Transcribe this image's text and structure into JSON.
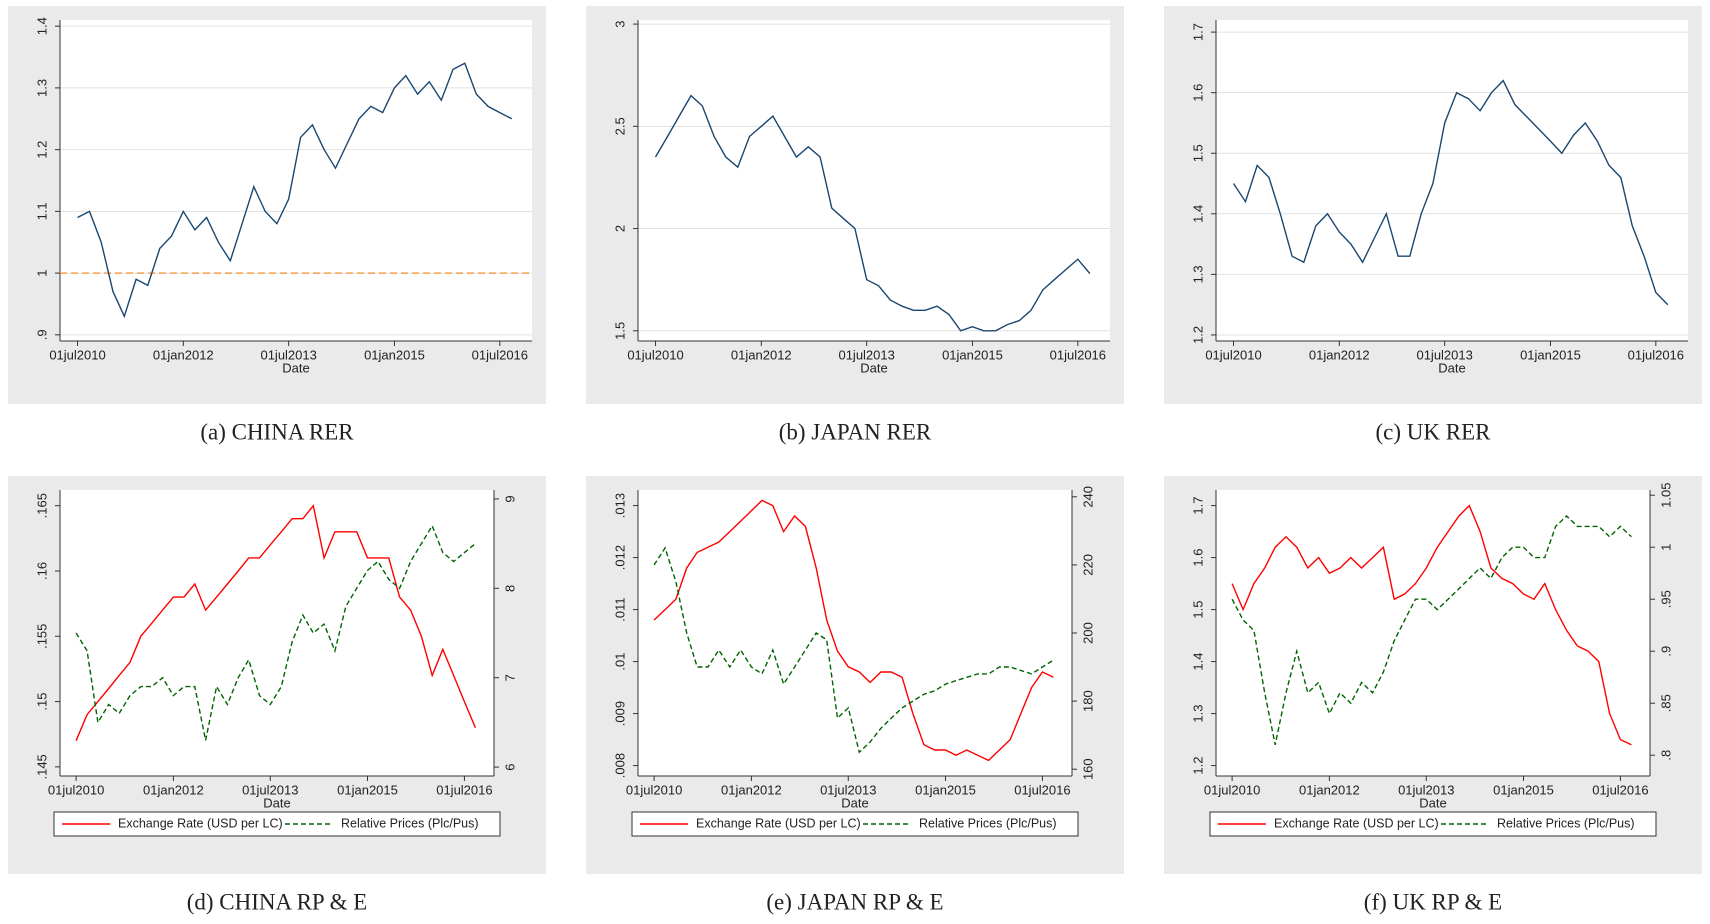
{
  "chart_data": [
    {
      "type": "line",
      "caption": "(a) CHINA RER",
      "x_label": "Date",
      "x": [
        "2010-07-01",
        "2010-09-01",
        "2010-11-01",
        "2011-01-01",
        "2011-03-01",
        "2011-05-01",
        "2011-07-01",
        "2011-09-01",
        "2011-11-01",
        "2012-01-01",
        "2012-03-01",
        "2012-05-01",
        "2012-07-01",
        "2012-09-01",
        "2012-11-01",
        "2013-01-01",
        "2013-03-01",
        "2013-05-01",
        "2013-07-01",
        "2013-09-01",
        "2013-11-01",
        "2014-01-01",
        "2014-03-01",
        "2014-05-01",
        "2014-07-01",
        "2014-09-01",
        "2014-11-01",
        "2015-01-01",
        "2015-03-01",
        "2015-05-01",
        "2015-07-01",
        "2015-09-01",
        "2015-11-01",
        "2016-01-01",
        "2016-03-01",
        "2016-05-01",
        "2016-07-01",
        "2016-09-01"
      ],
      "xlim": [
        "2010-04-01",
        "2016-12-15"
      ],
      "xticks": [
        {
          "value": "2010-07-01",
          "label": "01jul2010"
        },
        {
          "value": "2012-01-01",
          "label": "01jan2012"
        },
        {
          "value": "2013-07-01",
          "label": "01jul2013"
        },
        {
          "value": "2015-01-01",
          "label": "01jan2015"
        },
        {
          "value": "2016-07-01",
          "label": "01jul2016"
        }
      ],
      "ylim": [
        0.89,
        1.41
      ],
      "yticks": [
        {
          "value": 0.9,
          "label": ".9"
        },
        1,
        1.1,
        1.2,
        1.3,
        1.4
      ],
      "refline": 1,
      "refline_color": "#f5a04a",
      "grid": true,
      "series": [
        {
          "color": "#1a476f",
          "values": [
            1.09,
            1.1,
            1.05,
            0.97,
            0.93,
            0.99,
            0.98,
            1.04,
            1.06,
            1.1,
            1.07,
            1.09,
            1.05,
            1.02,
            1.08,
            1.14,
            1.1,
            1.08,
            1.12,
            1.22,
            1.24,
            1.2,
            1.17,
            1.21,
            1.25,
            1.27,
            1.26,
            1.3,
            1.32,
            1.29,
            1.31,
            1.28,
            1.33,
            1.34,
            1.29,
            1.27,
            1.26,
            1.25
          ]
        }
      ]
    },
    {
      "type": "line",
      "caption": "(b) JAPAN RER",
      "x_label": "Date",
      "x": [
        "2010-07-01",
        "2010-09-01",
        "2010-11-01",
        "2011-01-01",
        "2011-03-01",
        "2011-05-01",
        "2011-07-01",
        "2011-09-01",
        "2011-11-01",
        "2012-01-01",
        "2012-03-01",
        "2012-05-01",
        "2012-07-01",
        "2012-09-01",
        "2012-11-01",
        "2013-01-01",
        "2013-03-01",
        "2013-05-01",
        "2013-07-01",
        "2013-09-01",
        "2013-11-01",
        "2014-01-01",
        "2014-03-01",
        "2014-05-01",
        "2014-07-01",
        "2014-09-01",
        "2014-11-01",
        "2015-01-01",
        "2015-03-01",
        "2015-05-01",
        "2015-07-01",
        "2015-09-01",
        "2015-11-01",
        "2016-01-01",
        "2016-03-01",
        "2016-05-01",
        "2016-07-01",
        "2016-09-01"
      ],
      "xlim": [
        "2010-04-01",
        "2016-12-15"
      ],
      "xticks": [
        {
          "value": "2010-07-01",
          "label": "01jul2010"
        },
        {
          "value": "2012-01-01",
          "label": "01jan2012"
        },
        {
          "value": "2013-07-01",
          "label": "01jul2013"
        },
        {
          "value": "2015-01-01",
          "label": "01jan2015"
        },
        {
          "value": "2016-07-01",
          "label": "01jul2016"
        }
      ],
      "ylim": [
        1.45,
        3.02
      ],
      "yticks": [
        1.5,
        2,
        2.5,
        3
      ],
      "grid": true,
      "series": [
        {
          "color": "#1a476f",
          "values": [
            2.35,
            2.45,
            2.55,
            2.65,
            2.6,
            2.45,
            2.35,
            2.3,
            2.45,
            2.5,
            2.55,
            2.45,
            2.35,
            2.4,
            2.35,
            2.1,
            2.05,
            2.0,
            1.75,
            1.72,
            1.65,
            1.62,
            1.6,
            1.6,
            1.62,
            1.58,
            1.5,
            1.52,
            1.5,
            1.5,
            1.53,
            1.55,
            1.6,
            1.7,
            1.75,
            1.8,
            1.85,
            1.78
          ]
        }
      ]
    },
    {
      "type": "line",
      "caption": "(c) UK RER",
      "x_label": "Date",
      "x": [
        "2010-07-01",
        "2010-09-01",
        "2010-11-01",
        "2011-01-01",
        "2011-03-01",
        "2011-05-01",
        "2011-07-01",
        "2011-09-01",
        "2011-11-01",
        "2012-01-01",
        "2012-03-01",
        "2012-05-01",
        "2012-07-01",
        "2012-09-01",
        "2012-11-01",
        "2013-01-01",
        "2013-03-01",
        "2013-05-01",
        "2013-07-01",
        "2013-09-01",
        "2013-11-01",
        "2014-01-01",
        "2014-03-01",
        "2014-05-01",
        "2014-07-01",
        "2014-09-01",
        "2014-11-01",
        "2015-01-01",
        "2015-03-01",
        "2015-05-01",
        "2015-07-01",
        "2015-09-01",
        "2015-11-01",
        "2016-01-01",
        "2016-03-01",
        "2016-05-01",
        "2016-07-01",
        "2016-09-01"
      ],
      "xlim": [
        "2010-04-01",
        "2016-12-15"
      ],
      "xticks": [
        {
          "value": "2010-07-01",
          "label": "01jul2010"
        },
        {
          "value": "2012-01-01",
          "label": "01jan2012"
        },
        {
          "value": "2013-07-01",
          "label": "01jul2013"
        },
        {
          "value": "2015-01-01",
          "label": "01jan2015"
        },
        {
          "value": "2016-07-01",
          "label": "01jul2016"
        }
      ],
      "ylim": [
        1.19,
        1.72
      ],
      "yticks": [
        1.2,
        1.3,
        1.4,
        1.5,
        1.6,
        1.7
      ],
      "grid": true,
      "series": [
        {
          "color": "#1a476f",
          "values": [
            1.45,
            1.42,
            1.48,
            1.46,
            1.4,
            1.33,
            1.32,
            1.38,
            1.4,
            1.37,
            1.35,
            1.32,
            1.36,
            1.4,
            1.33,
            1.33,
            1.4,
            1.45,
            1.55,
            1.6,
            1.59,
            1.57,
            1.6,
            1.62,
            1.58,
            1.56,
            1.54,
            1.52,
            1.5,
            1.53,
            1.55,
            1.52,
            1.48,
            1.46,
            1.38,
            1.33,
            1.27,
            1.25
          ]
        }
      ]
    },
    {
      "type": "line",
      "caption": "(d) CHINA RP & E",
      "x_label": "Date",
      "legend": "bottom",
      "x": [
        "2010-07-01",
        "2010-09-01",
        "2010-11-01",
        "2011-01-01",
        "2011-03-01",
        "2011-05-01",
        "2011-07-01",
        "2011-09-01",
        "2011-11-01",
        "2012-01-01",
        "2012-03-01",
        "2012-05-01",
        "2012-07-01",
        "2012-09-01",
        "2012-11-01",
        "2013-01-01",
        "2013-03-01",
        "2013-05-01",
        "2013-07-01",
        "2013-09-01",
        "2013-11-01",
        "2014-01-01",
        "2014-03-01",
        "2014-05-01",
        "2014-07-01",
        "2014-09-01",
        "2014-11-01",
        "2015-01-01",
        "2015-03-01",
        "2015-05-01",
        "2015-07-01",
        "2015-09-01",
        "2015-11-01",
        "2016-01-01",
        "2016-03-01",
        "2016-05-01",
        "2016-07-01",
        "2016-09-01"
      ],
      "xlim": [
        "2010-04-01",
        "2016-12-15"
      ],
      "xticks": [
        {
          "value": "2010-07-01",
          "label": "01jul2010"
        },
        {
          "value": "2012-01-01",
          "label": "01jan2012"
        },
        {
          "value": "2013-07-01",
          "label": "01jul2013"
        },
        {
          "value": "2015-01-01",
          "label": "01jan2015"
        },
        {
          "value": "2016-07-01",
          "label": "01jul2016"
        }
      ],
      "ylim": [
        0.1443,
        0.1662
      ],
      "yticks": [
        {
          "value": 0.145,
          "label": ".145"
        },
        {
          "value": 0.15,
          "label": ".15"
        },
        {
          "value": 0.155,
          "label": ".155"
        },
        {
          "value": 0.16,
          "label": ".16"
        },
        {
          "value": 0.165,
          "label": ".165"
        }
      ],
      "y2lim": [
        5.9,
        9.1
      ],
      "y2ticks": [
        6,
        7,
        8,
        9
      ],
      "grid": false,
      "series": [
        {
          "name": "Exchange Rate (USD per LC)",
          "color": "#ff0000",
          "values": [
            0.147,
            0.149,
            0.15,
            0.151,
            0.152,
            0.153,
            0.155,
            0.156,
            0.157,
            0.158,
            0.158,
            0.159,
            0.157,
            0.158,
            0.159,
            0.16,
            0.161,
            0.161,
            0.162,
            0.163,
            0.164,
            0.164,
            0.165,
            0.161,
            0.163,
            0.163,
            0.163,
            0.161,
            0.161,
            0.161,
            0.158,
            0.157,
            0.155,
            0.152,
            0.154,
            0.152,
            0.15,
            0.148
          ]
        },
        {
          "name": "Relative Prices (Plc/Pus)",
          "color": "#006400",
          "dash": true,
          "axis": "y2",
          "values": [
            7.5,
            7.3,
            6.5,
            6.7,
            6.6,
            6.8,
            6.9,
            6.9,
            7.0,
            6.8,
            6.9,
            6.9,
            6.3,
            6.9,
            6.7,
            7.0,
            7.2,
            6.8,
            6.7,
            6.9,
            7.4,
            7.7,
            7.5,
            7.6,
            7.3,
            7.8,
            8.0,
            8.2,
            8.3,
            8.1,
            8.0,
            8.3,
            8.5,
            8.7,
            8.4,
            8.3,
            8.4,
            8.5
          ]
        }
      ]
    },
    {
      "type": "line",
      "caption": "(e) JAPAN RP & E",
      "x_label": "Date",
      "legend": "bottom",
      "x": [
        "2010-07-01",
        "2010-09-01",
        "2010-11-01",
        "2011-01-01",
        "2011-03-01",
        "2011-05-01",
        "2011-07-01",
        "2011-09-01",
        "2011-11-01",
        "2012-01-01",
        "2012-03-01",
        "2012-05-01",
        "2012-07-01",
        "2012-09-01",
        "2012-11-01",
        "2013-01-01",
        "2013-03-01",
        "2013-05-01",
        "2013-07-01",
        "2013-09-01",
        "2013-11-01",
        "2014-01-01",
        "2014-03-01",
        "2014-05-01",
        "2014-07-01",
        "2014-09-01",
        "2014-11-01",
        "2015-01-01",
        "2015-03-01",
        "2015-05-01",
        "2015-07-01",
        "2015-09-01",
        "2015-11-01",
        "2016-01-01",
        "2016-03-01",
        "2016-05-01",
        "2016-07-01",
        "2016-09-01"
      ],
      "xlim": [
        "2010-04-01",
        "2016-12-15"
      ],
      "xticks": [
        {
          "value": "2010-07-01",
          "label": "01jul2010"
        },
        {
          "value": "2012-01-01",
          "label": "01jan2012"
        },
        {
          "value": "2013-07-01",
          "label": "01jul2013"
        },
        {
          "value": "2015-01-01",
          "label": "01jan2015"
        },
        {
          "value": "2016-07-01",
          "label": "01jul2016"
        }
      ],
      "ylim": [
        0.0078,
        0.0133
      ],
      "yticks": [
        {
          "value": 0.008,
          "label": ".008"
        },
        {
          "value": 0.009,
          "label": ".009"
        },
        {
          "value": 0.01,
          "label": ".01"
        },
        {
          "value": 0.011,
          "label": ".011"
        },
        {
          "value": 0.012,
          "label": ".012"
        },
        {
          "value": 0.013,
          "label": ".013"
        }
      ],
      "y2lim": [
        158,
        242
      ],
      "y2ticks": [
        160,
        180,
        200,
        220,
        240
      ],
      "grid": false,
      "series": [
        {
          "name": "Exchange Rate (USD per LC)",
          "color": "#ff0000",
          "values": [
            0.0108,
            0.011,
            0.0112,
            0.0118,
            0.0121,
            0.0122,
            0.0123,
            0.0125,
            0.0127,
            0.0129,
            0.0131,
            0.013,
            0.0125,
            0.0128,
            0.0126,
            0.0118,
            0.0108,
            0.0102,
            0.0099,
            0.0098,
            0.0096,
            0.0098,
            0.0098,
            0.0097,
            0.009,
            0.0084,
            0.0083,
            0.0083,
            0.0082,
            0.0083,
            0.0082,
            0.0081,
            0.0083,
            0.0085,
            0.009,
            0.0095,
            0.0098,
            0.0097
          ]
        },
        {
          "name": "Relative Prices (Plc/Pus)",
          "color": "#006400",
          "dash": true,
          "axis": "y2",
          "values": [
            220,
            225,
            215,
            200,
            190,
            190,
            195,
            190,
            195,
            190,
            188,
            195,
            185,
            190,
            195,
            200,
            198,
            175,
            178,
            165,
            168,
            172,
            175,
            178,
            180,
            182,
            183,
            185,
            186,
            187,
            188,
            188,
            190,
            190,
            189,
            188,
            190,
            192
          ]
        }
      ]
    },
    {
      "type": "line",
      "caption": "(f) UK RP & E",
      "x_label": "Date",
      "legend": "bottom",
      "x": [
        "2010-07-01",
        "2010-09-01",
        "2010-11-01",
        "2011-01-01",
        "2011-03-01",
        "2011-05-01",
        "2011-07-01",
        "2011-09-01",
        "2011-11-01",
        "2012-01-01",
        "2012-03-01",
        "2012-05-01",
        "2012-07-01",
        "2012-09-01",
        "2012-11-01",
        "2013-01-01",
        "2013-03-01",
        "2013-05-01",
        "2013-07-01",
        "2013-09-01",
        "2013-11-01",
        "2014-01-01",
        "2014-03-01",
        "2014-05-01",
        "2014-07-01",
        "2014-09-01",
        "2014-11-01",
        "2015-01-01",
        "2015-03-01",
        "2015-05-01",
        "2015-07-01",
        "2015-09-01",
        "2015-11-01",
        "2016-01-01",
        "2016-03-01",
        "2016-05-01",
        "2016-07-01",
        "2016-09-01"
      ],
      "xlim": [
        "2010-04-01",
        "2016-12-15"
      ],
      "xticks": [
        {
          "value": "2010-07-01",
          "label": "01jul2010"
        },
        {
          "value": "2012-01-01",
          "label": "01jan2012"
        },
        {
          "value": "2013-07-01",
          "label": "01jul2013"
        },
        {
          "value": "2015-01-01",
          "label": "01jan2015"
        },
        {
          "value": "2016-07-01",
          "label": "01jul2016"
        }
      ],
      "ylim": [
        1.18,
        1.73
      ],
      "yticks": [
        1.2,
        1.3,
        1.4,
        1.5,
        1.6,
        1.7
      ],
      "y2lim": [
        0.78,
        1.055
      ],
      "y2ticks": [
        {
          "value": 0.8,
          "label": ".8"
        },
        {
          "value": 0.85,
          "label": ".85"
        },
        {
          "value": 0.9,
          "label": ".9"
        },
        {
          "value": 0.95,
          "label": ".95"
        },
        1,
        1.05
      ],
      "grid": false,
      "series": [
        {
          "name": "Exchange Rate (USD per LC)",
          "color": "#ff0000",
          "values": [
            1.55,
            1.5,
            1.55,
            1.58,
            1.62,
            1.64,
            1.62,
            1.58,
            1.6,
            1.57,
            1.58,
            1.6,
            1.58,
            1.6,
            1.62,
            1.52,
            1.53,
            1.55,
            1.58,
            1.62,
            1.65,
            1.68,
            1.7,
            1.65,
            1.58,
            1.56,
            1.55,
            1.53,
            1.52,
            1.55,
            1.5,
            1.46,
            1.43,
            1.42,
            1.4,
            1.3,
            1.25,
            1.24
          ]
        },
        {
          "name": "Relative Prices (Plc/Pus)",
          "color": "#006400",
          "dash": true,
          "axis": "y2",
          "values": [
            0.95,
            0.93,
            0.92,
            0.86,
            0.81,
            0.86,
            0.9,
            0.86,
            0.87,
            0.84,
            0.86,
            0.85,
            0.87,
            0.86,
            0.88,
            0.91,
            0.93,
            0.95,
            0.95,
            0.94,
            0.95,
            0.96,
            0.97,
            0.98,
            0.97,
            0.99,
            1.0,
            1.0,
            0.99,
            0.99,
            1.02,
            1.03,
            1.02,
            1.02,
            1.02,
            1.01,
            1.02,
            1.01
          ]
        }
      ]
    }
  ]
}
